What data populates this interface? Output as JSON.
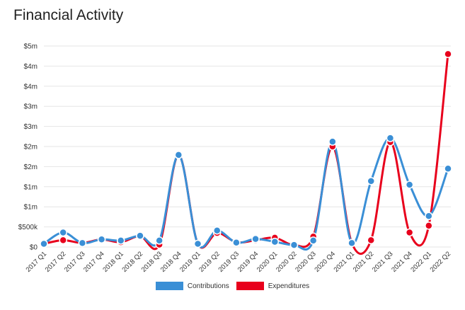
{
  "page_title": "Financial Activity",
  "chart_data": {
    "type": "line",
    "title": "Financial Activity",
    "xlabel": "",
    "ylabel": "",
    "ylim": [
      0,
      5000000
    ],
    "y_ticks": [
      {
        "value": 0,
        "label": "$0"
      },
      {
        "value": 500000,
        "label": "$500k"
      },
      {
        "value": 1000000,
        "label": "$1m"
      },
      {
        "value": 1500000,
        "label": "$1m"
      },
      {
        "value": 2000000,
        "label": "$2m"
      },
      {
        "value": 2500000,
        "label": "$2m"
      },
      {
        "value": 3000000,
        "label": "$3m"
      },
      {
        "value": 3500000,
        "label": "$3m"
      },
      {
        "value": 4000000,
        "label": "$4m"
      },
      {
        "value": 4500000,
        "label": "$4m"
      },
      {
        "value": 5000000,
        "label": "$5m"
      }
    ],
    "grid": true,
    "legend_position": "bottom",
    "categories": [
      "2017 Q1",
      "2017 Q2",
      "2017 Q3",
      "2017 Q4",
      "2018 Q1",
      "2018 Q2",
      "2018 Q3",
      "2018 Q4",
      "2019 Q1",
      "2019 Q2",
      "2019 Q3",
      "2019 Q4",
      "2020 Q1",
      "2020 Q2",
      "2020 Q3",
      "2020 Q4",
      "2021 Q1",
      "2021 Q2",
      "2021 Q3",
      "2021 Q4",
      "2022 Q1",
      "2022 Q2"
    ],
    "series": [
      {
        "name": "Contributions",
        "color": "#3a8fd6",
        "values": [
          80000,
          360000,
          100000,
          190000,
          160000,
          280000,
          160000,
          2290000,
          80000,
          410000,
          110000,
          200000,
          130000,
          50000,
          160000,
          2620000,
          100000,
          1640000,
          2710000,
          1550000,
          770000,
          1950000
        ]
      },
      {
        "name": "Expenditures",
        "color": "#e8001c",
        "values": [
          80000,
          170000,
          100000,
          190000,
          120000,
          270000,
          60000,
          2290000,
          80000,
          350000,
          120000,
          170000,
          230000,
          50000,
          260000,
          2500000,
          100000,
          170000,
          2610000,
          360000,
          530000,
          4800000
        ]
      }
    ]
  }
}
